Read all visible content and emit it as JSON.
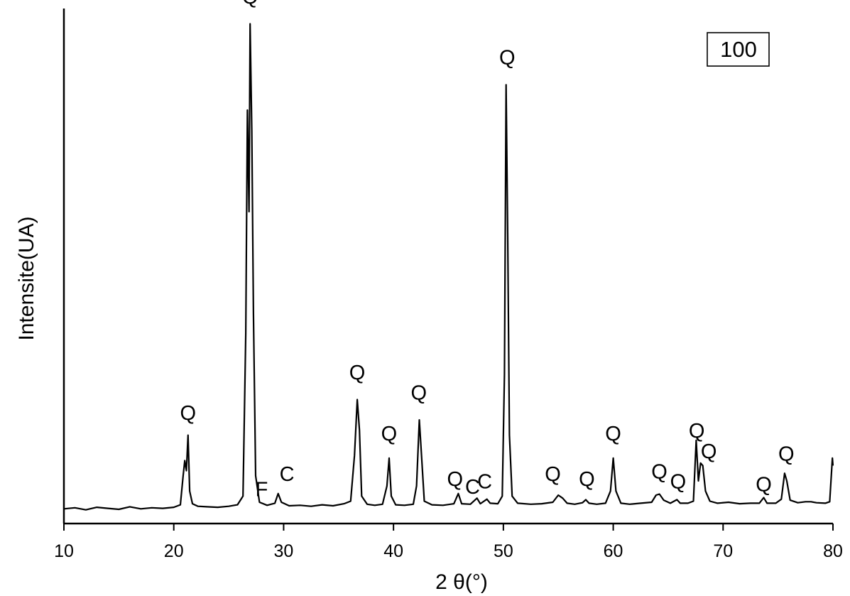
{
  "chart_data": {
    "type": "line",
    "title": "",
    "xlabel": "2 θ(°)",
    "ylabel": "Intensite(UA)",
    "xlim": [
      10,
      80
    ],
    "ylim": [
      0,
      100
    ],
    "x_ticks": [
      "10",
      "20",
      "30",
      "40",
      "50",
      "60",
      "70",
      "80"
    ],
    "y_ticks_shown": false,
    "grid": false,
    "sample_label": "100",
    "line_color": "#000000",
    "series": [
      {
        "points": [
          [
            10,
            1.5
          ],
          [
            11,
            1.7
          ],
          [
            12,
            1.3
          ],
          [
            13,
            1.8
          ],
          [
            14,
            1.6
          ],
          [
            15,
            1.4
          ],
          [
            16,
            1.9
          ],
          [
            17,
            1.5
          ],
          [
            18,
            1.7
          ],
          [
            19,
            1.6
          ],
          [
            20,
            1.8
          ],
          [
            20.6,
            2.3
          ],
          [
            20.85,
            8
          ],
          [
            21.0,
            11
          ],
          [
            21.15,
            9
          ],
          [
            21.3,
            16
          ],
          [
            21.45,
            5
          ],
          [
            21.7,
            2.5
          ],
          [
            22.2,
            2.0
          ],
          [
            23,
            1.9
          ],
          [
            24,
            1.8
          ],
          [
            25,
            2.0
          ],
          [
            25.8,
            2.3
          ],
          [
            26.3,
            4
          ],
          [
            26.55,
            36
          ],
          [
            26.7,
            80
          ],
          [
            26.85,
            60
          ],
          [
            26.95,
            97
          ],
          [
            27.1,
            76
          ],
          [
            27.25,
            40
          ],
          [
            27.45,
            8
          ],
          [
            27.8,
            2.8
          ],
          [
            28.5,
            2.2
          ],
          [
            29.2,
            2.6
          ],
          [
            29.5,
            4.5
          ],
          [
            29.8,
            2.8
          ],
          [
            30.5,
            2.1
          ],
          [
            31.5,
            2.2
          ],
          [
            32.5,
            2.0
          ],
          [
            33.5,
            2.3
          ],
          [
            34.5,
            2.1
          ],
          [
            35.5,
            2.5
          ],
          [
            36.1,
            3
          ],
          [
            36.45,
            12
          ],
          [
            36.7,
            23
          ],
          [
            36.9,
            17
          ],
          [
            37.1,
            4
          ],
          [
            37.6,
            2.4
          ],
          [
            38.3,
            2.2
          ],
          [
            39.0,
            2.4
          ],
          [
            39.4,
            6
          ],
          [
            39.6,
            11.5
          ],
          [
            39.8,
            4
          ],
          [
            40.2,
            2.3
          ],
          [
            41.0,
            2.2
          ],
          [
            41.8,
            2.4
          ],
          [
            42.1,
            6
          ],
          [
            42.35,
            19
          ],
          [
            42.55,
            12
          ],
          [
            42.8,
            3
          ],
          [
            43.5,
            2.3
          ],
          [
            44.5,
            2.2
          ],
          [
            45.5,
            2.5
          ],
          [
            45.9,
            4.5
          ],
          [
            46.2,
            2.5
          ],
          [
            47.0,
            2.4
          ],
          [
            47.6,
            3.6
          ],
          [
            47.9,
            2.5
          ],
          [
            48.5,
            3.4
          ],
          [
            48.8,
            2.6
          ],
          [
            49.5,
            2.5
          ],
          [
            49.9,
            4
          ],
          [
            50.1,
            28
          ],
          [
            50.25,
            85
          ],
          [
            50.4,
            55
          ],
          [
            50.55,
            16
          ],
          [
            50.8,
            4
          ],
          [
            51.3,
            2.6
          ],
          [
            52.5,
            2.4
          ],
          [
            53.5,
            2.5
          ],
          [
            54.5,
            2.8
          ],
          [
            55.0,
            4.2
          ],
          [
            55.4,
            3.6
          ],
          [
            55.8,
            2.6
          ],
          [
            56.5,
            2.4
          ],
          [
            57.2,
            2.7
          ],
          [
            57.5,
            3.3
          ],
          [
            57.8,
            2.6
          ],
          [
            58.5,
            2.4
          ],
          [
            59.3,
            2.6
          ],
          [
            59.75,
            5
          ],
          [
            60.0,
            11.5
          ],
          [
            60.25,
            5
          ],
          [
            60.7,
            2.6
          ],
          [
            61.5,
            2.4
          ],
          [
            62.5,
            2.6
          ],
          [
            63.5,
            2.8
          ],
          [
            63.9,
            4.2
          ],
          [
            64.2,
            4.4
          ],
          [
            64.6,
            3.2
          ],
          [
            65.2,
            2.6
          ],
          [
            65.8,
            3.3
          ],
          [
            66.1,
            2.6
          ],
          [
            66.8,
            2.6
          ],
          [
            67.3,
            3
          ],
          [
            67.55,
            15
          ],
          [
            67.75,
            7
          ],
          [
            67.95,
            10.5
          ],
          [
            68.15,
            10
          ],
          [
            68.4,
            5
          ],
          [
            68.8,
            3
          ],
          [
            69.5,
            2.6
          ],
          [
            70.5,
            2.8
          ],
          [
            71.5,
            2.5
          ],
          [
            72.5,
            2.6
          ],
          [
            73.3,
            2.6
          ],
          [
            73.7,
            3.7
          ],
          [
            74.0,
            2.6
          ],
          [
            74.8,
            2.6
          ],
          [
            75.3,
            3.4
          ],
          [
            75.6,
            8.5
          ],
          [
            75.8,
            7
          ],
          [
            76.1,
            3.2
          ],
          [
            76.8,
            2.7
          ],
          [
            77.5,
            2.9
          ],
          [
            78.0,
            2.9
          ],
          [
            78.5,
            2.7
          ],
          [
            79.3,
            2.6
          ],
          [
            79.7,
            2.9
          ],
          [
            79.95,
            11.5
          ],
          [
            80,
            10
          ]
        ]
      }
    ],
    "annotations": [
      {
        "text": "Q",
        "x": 21.3,
        "y": 19
      },
      {
        "text": "Q",
        "x": 26.95,
        "y": 101
      },
      {
        "text": "F",
        "x": 28.0,
        "y": 4
      },
      {
        "text": "C",
        "x": 30.3,
        "y": 7
      },
      {
        "text": "Q",
        "x": 36.7,
        "y": 27
      },
      {
        "text": "Q",
        "x": 39.6,
        "y": 15
      },
      {
        "text": "Q",
        "x": 42.3,
        "y": 23
      },
      {
        "text": "Q",
        "x": 50.35,
        "y": 89
      },
      {
        "text": "Q",
        "x": 45.6,
        "y": 6
      },
      {
        "text": "C",
        "x": 47.2,
        "y": 4.5
      },
      {
        "text": "C",
        "x": 48.3,
        "y": 5.5
      },
      {
        "text": "Q",
        "x": 54.5,
        "y": 7
      },
      {
        "text": "Q",
        "x": 57.6,
        "y": 6
      },
      {
        "text": "Q",
        "x": 60.0,
        "y": 15
      },
      {
        "text": "Q",
        "x": 64.2,
        "y": 7.5
      },
      {
        "text": "Q",
        "x": 65.9,
        "y": 5.5
      },
      {
        "text": "Q",
        "x": 67.6,
        "y": 15.5
      },
      {
        "text": "Q",
        "x": 68.7,
        "y": 11.5
      },
      {
        "text": "Q",
        "x": 73.7,
        "y": 5
      },
      {
        "text": "Q",
        "x": 75.75,
        "y": 11
      }
    ]
  }
}
